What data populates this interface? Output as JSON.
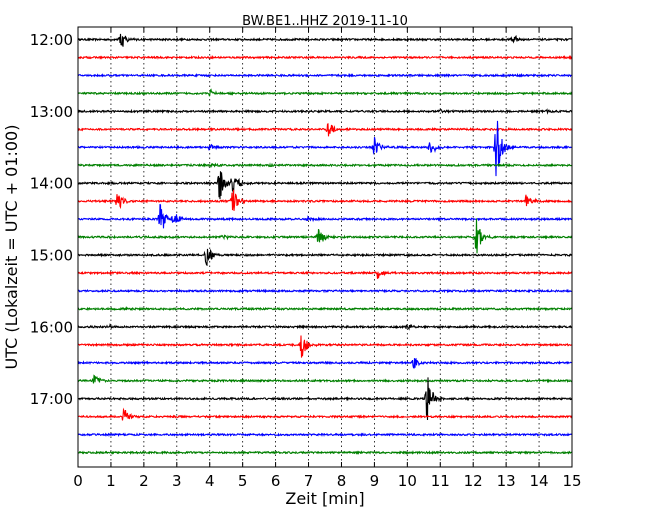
{
  "chart_data": {
    "type": "line",
    "title": "BW.BE1..HHZ 2019-11-10",
    "xlabel": "Zeit  [min]",
    "ylabel": "UTC (Lokalzeit = UTC + 01:00)",
    "xlim": [
      0,
      15
    ],
    "x_ticks": [
      "0",
      "1",
      "2",
      "3",
      "4",
      "5",
      "6",
      "7",
      "8",
      "9",
      "10",
      "11",
      "12",
      "13",
      "14",
      "15"
    ],
    "y_ticks": [
      "12:00",
      "13:00",
      "14:00",
      "15:00",
      "16:00",
      "17:00"
    ],
    "grid": "vertical dotted",
    "row_interval_minutes": 15,
    "colors": [
      "#000000",
      "#ff0000",
      "#0000ff",
      "#008000"
    ],
    "traces": [
      {
        "start": "12:00",
        "color": "#000000",
        "events": [
          {
            "minute": 1.3,
            "amplitude": 0.8
          },
          {
            "minute": 13.2,
            "amplitude": 0.5
          }
        ]
      },
      {
        "start": "12:15",
        "color": "#ff0000",
        "events": []
      },
      {
        "start": "12:30",
        "color": "#0000ff",
        "events": []
      },
      {
        "start": "12:45",
        "color": "#008000",
        "events": [
          {
            "minute": 4.0,
            "amplitude": 0.3
          }
        ]
      },
      {
        "start": "13:00",
        "color": "#000000",
        "events": [
          {
            "minute": 11.0,
            "amplitude": 0.15
          },
          {
            "minute": 14.2,
            "amplitude": 0.2
          }
        ]
      },
      {
        "start": "13:15",
        "color": "#ff0000",
        "events": [
          {
            "minute": 7.6,
            "amplitude": 0.6
          }
        ]
      },
      {
        "start": "13:30",
        "color": "#0000ff",
        "events": [
          {
            "minute": 4.0,
            "amplitude": 0.3
          },
          {
            "minute": 9.0,
            "amplitude": 0.9
          },
          {
            "minute": 10.7,
            "amplitude": 0.8
          },
          {
            "minute": 12.7,
            "amplitude": 2.6
          }
        ]
      },
      {
        "start": "13:45",
        "color": "#008000",
        "events": [
          {
            "minute": 4.0,
            "amplitude": 0.15
          },
          {
            "minute": 5.8,
            "amplitude": 0.15
          }
        ]
      },
      {
        "start": "14:00",
        "color": "#000000",
        "events": [
          {
            "minute": 4.3,
            "amplitude": 1.3
          },
          {
            "minute": 4.7,
            "amplitude": 1.0
          }
        ]
      },
      {
        "start": "14:15",
        "color": "#ff0000",
        "events": [
          {
            "minute": 1.2,
            "amplitude": 0.8
          },
          {
            "minute": 4.7,
            "amplitude": 1.2
          },
          {
            "minute": 13.6,
            "amplitude": 0.5
          }
        ]
      },
      {
        "start": "14:30",
        "color": "#0000ff",
        "events": [
          {
            "minute": 2.5,
            "amplitude": 1.4
          },
          {
            "minute": 2.9,
            "amplitude": 0.7
          },
          {
            "minute": 7.0,
            "amplitude": 0.2
          }
        ]
      },
      {
        "start": "14:45",
        "color": "#008000",
        "events": [
          {
            "minute": 4.4,
            "amplitude": 0.2
          },
          {
            "minute": 7.3,
            "amplitude": 1.2
          },
          {
            "minute": 12.1,
            "amplitude": 1.5
          }
        ]
      },
      {
        "start": "15:00",
        "color": "#000000",
        "events": [
          {
            "minute": 3.9,
            "amplitude": 0.9
          }
        ]
      },
      {
        "start": "15:15",
        "color": "#ff0000",
        "events": [
          {
            "minute": 9.1,
            "amplitude": 0.4
          }
        ]
      },
      {
        "start": "15:30",
        "color": "#0000ff",
        "events": []
      },
      {
        "start": "15:45",
        "color": "#008000",
        "events": [
          {
            "minute": 1.5,
            "amplitude": 0.1
          }
        ]
      },
      {
        "start": "16:00",
        "color": "#000000",
        "events": [
          {
            "minute": 0.9,
            "amplitude": 0.15
          },
          {
            "minute": 10.0,
            "amplitude": 0.2
          }
        ]
      },
      {
        "start": "16:15",
        "color": "#ff0000",
        "events": [
          {
            "minute": 6.8,
            "amplitude": 1.1
          }
        ]
      },
      {
        "start": "16:30",
        "color": "#0000ff",
        "events": [
          {
            "minute": 10.2,
            "amplitude": 0.5
          }
        ]
      },
      {
        "start": "16:45",
        "color": "#008000",
        "events": [
          {
            "minute": 0.5,
            "amplitude": 0.5
          }
        ]
      },
      {
        "start": "17:00",
        "color": "#000000",
        "events": [
          {
            "minute": 10.6,
            "amplitude": 1.9
          }
        ]
      },
      {
        "start": "17:15",
        "color": "#ff0000",
        "events": [
          {
            "minute": 1.4,
            "amplitude": 0.7
          }
        ]
      },
      {
        "start": "17:30",
        "color": "#0000ff",
        "events": []
      },
      {
        "start": "17:45",
        "color": "#008000",
        "events": []
      }
    ]
  }
}
